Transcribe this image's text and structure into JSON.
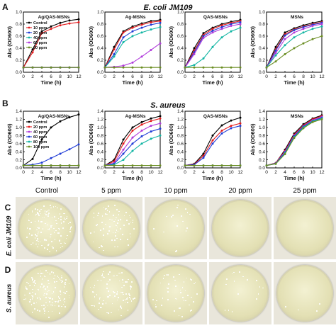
{
  "panel_letters": {
    "A": "A",
    "B": "B",
    "C": "C",
    "D": "D"
  },
  "organisms": {
    "A": "E. coli JM109",
    "B": "S. aureus"
  },
  "chart_data": [
    {
      "panel": "A",
      "type": "line",
      "title": "Ag/QAS-MSNs",
      "xlabel": "Time (h)",
      "ylabel": "Abs (OD600)",
      "x": [
        0,
        2,
        4,
        6,
        8,
        10,
        12
      ],
      "xlim": [
        0,
        12
      ],
      "ylim": [
        0,
        1.0
      ],
      "xticks": [
        0,
        2,
        4,
        6,
        8,
        10,
        12
      ],
      "yticks": [
        0.0,
        0.2,
        0.4,
        0.6,
        0.8,
        1.0
      ],
      "legend": "left",
      "series": [
        {
          "name": "Control",
          "color": "#000000",
          "values": [
            0.08,
            0.38,
            0.68,
            0.76,
            0.82,
            0.86,
            0.88
          ]
        },
        {
          "name": "10 ppm",
          "color": "#e41a1c",
          "values": [
            0.08,
            0.33,
            0.65,
            0.72,
            0.78,
            0.81,
            0.83
          ]
        },
        {
          "name": "20 ppm",
          "color": "#1f3bd6",
          "values": [
            0.08,
            0.08,
            0.08,
            0.08,
            0.08,
            0.08,
            0.08
          ]
        },
        {
          "name": "40 ppm",
          "color": "#11b5a3",
          "values": [
            0.08,
            0.08,
            0.08,
            0.08,
            0.08,
            0.08,
            0.08
          ]
        },
        {
          "name": "60 ppm",
          "color": "#b03adb",
          "values": [
            0.08,
            0.08,
            0.08,
            0.08,
            0.08,
            0.08,
            0.08
          ]
        },
        {
          "name": "80 ppm",
          "color": "#6b8e23",
          "values": [
            0.08,
            0.08,
            0.08,
            0.08,
            0.08,
            0.08,
            0.08
          ]
        }
      ]
    },
    {
      "panel": "A",
      "type": "line",
      "title": "Ag-MSNs",
      "xlabel": "Time (h)",
      "ylabel": "Abs (OD600)",
      "x": [
        0,
        2,
        4,
        6,
        8,
        10,
        12
      ],
      "xlim": [
        0,
        12
      ],
      "ylim": [
        0,
        1.0
      ],
      "xticks": [
        0,
        2,
        4,
        6,
        8,
        10,
        12
      ],
      "yticks": [
        0.0,
        0.2,
        0.4,
        0.6,
        0.8,
        1.0
      ],
      "series": [
        {
          "name": "Control",
          "color": "#000000",
          "values": [
            0.08,
            0.42,
            0.68,
            0.76,
            0.81,
            0.85,
            0.87
          ]
        },
        {
          "name": "10 ppm",
          "color": "#e41a1c",
          "values": [
            0.08,
            0.38,
            0.66,
            0.74,
            0.79,
            0.83,
            0.85
          ]
        },
        {
          "name": "20 ppm",
          "color": "#1f3bd6",
          "values": [
            0.08,
            0.3,
            0.58,
            0.68,
            0.74,
            0.79,
            0.82
          ]
        },
        {
          "name": "40 ppm",
          "color": "#11b5a3",
          "values": [
            0.08,
            0.26,
            0.5,
            0.6,
            0.66,
            0.71,
            0.75
          ]
        },
        {
          "name": "60 ppm",
          "color": "#b03adb",
          "values": [
            0.08,
            0.09,
            0.11,
            0.16,
            0.26,
            0.37,
            0.48
          ]
        },
        {
          "name": "80 ppm",
          "color": "#6b8e23",
          "values": [
            0.08,
            0.08,
            0.08,
            0.08,
            0.08,
            0.08,
            0.08
          ]
        }
      ]
    },
    {
      "panel": "A",
      "type": "line",
      "title": "QAS-MSNs",
      "xlabel": "Time (h)",
      "ylabel": "Abs (OD600)",
      "x": [
        0,
        2,
        4,
        6,
        8,
        10,
        12
      ],
      "xlim": [
        0,
        12
      ],
      "ylim": [
        0,
        1.0
      ],
      "xticks": [
        0,
        2,
        4,
        6,
        8,
        10,
        12
      ],
      "yticks": [
        0.0,
        0.2,
        0.4,
        0.6,
        0.8,
        1.0
      ],
      "series": [
        {
          "name": "Control",
          "color": "#000000",
          "values": [
            0.08,
            0.4,
            0.65,
            0.74,
            0.8,
            0.84,
            0.87
          ]
        },
        {
          "name": "10 ppm",
          "color": "#e41a1c",
          "values": [
            0.08,
            0.36,
            0.62,
            0.72,
            0.78,
            0.82,
            0.85
          ]
        },
        {
          "name": "20 ppm",
          "color": "#1f3bd6",
          "values": [
            0.08,
            0.33,
            0.6,
            0.69,
            0.75,
            0.8,
            0.83
          ]
        },
        {
          "name": "40 ppm",
          "color": "#b03adb",
          "values": [
            0.08,
            0.3,
            0.57,
            0.66,
            0.72,
            0.77,
            0.8
          ]
        },
        {
          "name": "60 ppm",
          "color": "#11b5a3",
          "values": [
            0.08,
            0.12,
            0.23,
            0.42,
            0.58,
            0.68,
            0.74
          ]
        },
        {
          "name": "80 ppm",
          "color": "#6b8e23",
          "values": [
            0.08,
            0.08,
            0.08,
            0.08,
            0.08,
            0.08,
            0.08
          ]
        }
      ]
    },
    {
      "panel": "A",
      "type": "line",
      "title": "MSNs",
      "xlabel": "Time (h)",
      "ylabel": "Abs (OD600)",
      "x": [
        0,
        2,
        4,
        6,
        8,
        10,
        12
      ],
      "xlim": [
        0,
        12
      ],
      "ylim": [
        0,
        1.0
      ],
      "xticks": [
        0,
        2,
        4,
        6,
        8,
        10,
        12
      ],
      "yticks": [
        0.0,
        0.2,
        0.4,
        0.6,
        0.8,
        1.0
      ],
      "series": [
        {
          "name": "Control",
          "color": "#000000",
          "values": [
            0.08,
            0.42,
            0.66,
            0.73,
            0.78,
            0.82,
            0.85
          ]
        },
        {
          "name": "10 ppm",
          "color": "#e41a1c",
          "values": [
            0.08,
            0.38,
            0.63,
            0.71,
            0.76,
            0.8,
            0.83
          ]
        },
        {
          "name": "20 ppm",
          "color": "#1f3bd6",
          "values": [
            0.08,
            0.36,
            0.61,
            0.7,
            0.75,
            0.79,
            0.82
          ]
        },
        {
          "name": "40 ppm",
          "color": "#b03adb",
          "values": [
            0.08,
            0.32,
            0.55,
            0.66,
            0.72,
            0.77,
            0.8
          ]
        },
        {
          "name": "60 ppm",
          "color": "#11b5a3",
          "values": [
            0.08,
            0.28,
            0.45,
            0.58,
            0.66,
            0.72,
            0.76
          ]
        },
        {
          "name": "80 ppm",
          "color": "#6b8e23",
          "values": [
            0.08,
            0.18,
            0.3,
            0.4,
            0.48,
            0.55,
            0.6
          ]
        }
      ]
    },
    {
      "panel": "B",
      "type": "line",
      "title": "Ag/QAS-MSNs",
      "xlabel": "Time (h)",
      "ylabel": "Abs (OD600)",
      "x": [
        0,
        2,
        4,
        6,
        8,
        10,
        12
      ],
      "xlim": [
        0,
        12
      ],
      "ylim": [
        0,
        1.4
      ],
      "xticks": [
        0,
        2,
        4,
        6,
        8,
        10,
        12
      ],
      "yticks": [
        0.0,
        0.2,
        0.4,
        0.6,
        0.8,
        1.0,
        1.2,
        1.4
      ],
      "legend": "left",
      "series": [
        {
          "name": "Control",
          "color": "#000000",
          "values": [
            0.06,
            0.22,
            0.7,
            1.0,
            1.15,
            1.25,
            1.32
          ]
        },
        {
          "name": "20 ppm",
          "color": "#e41a1c",
          "values": [
            0.06,
            0.06,
            0.06,
            0.06,
            0.06,
            0.06,
            0.06
          ]
        },
        {
          "name": "40 ppm",
          "color": "#b03adb",
          "values": [
            0.06,
            0.06,
            0.06,
            0.06,
            0.06,
            0.06,
            0.06
          ]
        },
        {
          "name": "60 ppm",
          "color": "#1f3bd6",
          "values": [
            0.06,
            0.08,
            0.13,
            0.24,
            0.35,
            0.46,
            0.58
          ]
        },
        {
          "name": "80 ppm",
          "color": "#11b5a3",
          "values": [
            0.06,
            0.06,
            0.06,
            0.06,
            0.06,
            0.06,
            0.06
          ]
        },
        {
          "name": "100 ppm",
          "color": "#6b8e23",
          "values": [
            0.06,
            0.06,
            0.06,
            0.06,
            0.06,
            0.06,
            0.06
          ]
        }
      ]
    },
    {
      "panel": "B",
      "type": "line",
      "title": "Ag-MSNs",
      "xlabel": "Time (h)",
      "ylabel": "Abs (OD600)",
      "x": [
        0,
        2,
        4,
        6,
        8,
        10,
        12
      ],
      "xlim": [
        0,
        12
      ],
      "ylim": [
        0,
        1.4
      ],
      "xticks": [
        0,
        2,
        4,
        6,
        8,
        10,
        12
      ],
      "yticks": [
        0.0,
        0.2,
        0.4,
        0.6,
        0.8,
        1.0,
        1.2,
        1.4
      ],
      "series": [
        {
          "name": "Control",
          "color": "#000000",
          "values": [
            0.06,
            0.2,
            0.7,
            1.0,
            1.13,
            1.22,
            1.28
          ]
        },
        {
          "name": "20 ppm",
          "color": "#e41a1c",
          "values": [
            0.06,
            0.16,
            0.6,
            0.92,
            1.07,
            1.16,
            1.22
          ]
        },
        {
          "name": "40 ppm",
          "color": "#b03adb",
          "values": [
            0.06,
            0.12,
            0.45,
            0.75,
            0.92,
            1.04,
            1.1
          ]
        },
        {
          "name": "60 ppm",
          "color": "#1f3bd6",
          "values": [
            0.06,
            0.1,
            0.35,
            0.6,
            0.78,
            0.9,
            0.97
          ]
        },
        {
          "name": "80 ppm",
          "color": "#11b5a3",
          "values": [
            0.06,
            0.08,
            0.2,
            0.42,
            0.6,
            0.72,
            0.8
          ]
        },
        {
          "name": "100 ppm",
          "color": "#6b8e23",
          "values": [
            0.06,
            0.06,
            0.06,
            0.06,
            0.06,
            0.06,
            0.06
          ]
        }
      ]
    },
    {
      "panel": "B",
      "type": "line",
      "title": "QAS-MSNs",
      "xlabel": "Time (h)",
      "ylabel": "Abs (OD600)",
      "x": [
        0,
        2,
        4,
        6,
        8,
        10,
        12
      ],
      "xlim": [
        0,
        12
      ],
      "ylim": [
        0,
        1.4
      ],
      "xticks": [
        0,
        2,
        4,
        6,
        8,
        10,
        12
      ],
      "yticks": [
        0.0,
        0.2,
        0.4,
        0.6,
        0.8,
        1.0,
        1.2,
        1.4
      ],
      "series": [
        {
          "name": "Control",
          "color": "#000000",
          "values": [
            0.06,
            0.1,
            0.35,
            0.8,
            1.05,
            1.17,
            1.24
          ]
        },
        {
          "name": "20 ppm",
          "color": "#e41a1c",
          "values": [
            0.06,
            0.09,
            0.3,
            0.68,
            0.92,
            1.04,
            1.1
          ]
        },
        {
          "name": "40 ppm",
          "color": "#1f3bd6",
          "values": [
            0.06,
            0.08,
            0.25,
            0.6,
            0.85,
            0.98,
            1.04
          ]
        },
        {
          "name": "60 ppm",
          "color": "#b03adb",
          "values": [
            0.06,
            0.06,
            0.06,
            0.06,
            0.06,
            0.06,
            0.06
          ]
        },
        {
          "name": "80 ppm",
          "color": "#11b5a3",
          "values": [
            0.06,
            0.06,
            0.06,
            0.06,
            0.06,
            0.06,
            0.06
          ]
        },
        {
          "name": "100 ppm",
          "color": "#6b8e23",
          "values": [
            0.06,
            0.06,
            0.06,
            0.06,
            0.06,
            0.06,
            0.06
          ]
        }
      ]
    },
    {
      "panel": "B",
      "type": "line",
      "title": "MSNs",
      "xlabel": "Time (h)",
      "ylabel": "Abs (OD600)",
      "x": [
        0,
        2,
        4,
        6,
        8,
        10,
        12
      ],
      "xlim": [
        0,
        12
      ],
      "ylim": [
        0,
        1.4
      ],
      "xticks": [
        0,
        2,
        4,
        6,
        8,
        10,
        12
      ],
      "yticks": [
        0.0,
        0.2,
        0.4,
        0.6,
        0.8,
        1.0,
        1.2,
        1.4
      ],
      "series": [
        {
          "name": "Control",
          "color": "#000000",
          "values": [
            0.06,
            0.12,
            0.45,
            0.85,
            1.08,
            1.22,
            1.3
          ]
        },
        {
          "name": "20 ppm",
          "color": "#e41a1c",
          "values": [
            0.06,
            0.12,
            0.42,
            0.82,
            1.05,
            1.2,
            1.28
          ]
        },
        {
          "name": "40 ppm",
          "color": "#b03adb",
          "values": [
            0.06,
            0.11,
            0.4,
            0.8,
            1.03,
            1.18,
            1.26
          ]
        },
        {
          "name": "60 ppm",
          "color": "#1f3bd6",
          "values": [
            0.06,
            0.11,
            0.38,
            0.78,
            1.02,
            1.16,
            1.24
          ]
        },
        {
          "name": "80 ppm",
          "color": "#11b5a3",
          "values": [
            0.06,
            0.1,
            0.36,
            0.76,
            1.0,
            1.15,
            1.22
          ]
        },
        {
          "name": "100 ppm",
          "color": "#6b8e23",
          "values": [
            0.06,
            0.1,
            0.34,
            0.74,
            0.98,
            1.13,
            1.2
          ]
        }
      ]
    }
  ],
  "plates": {
    "headers": [
      "Control",
      "5 ppm",
      "10 ppm",
      "20 ppm",
      "25 ppm"
    ],
    "rows": [
      {
        "letter": "C",
        "label": "E. coli JM109",
        "colony_levels": [
          1.0,
          0.55,
          0.12,
          0.0,
          0.0
        ]
      },
      {
        "letter": "D",
        "label": "S. aureus",
        "colony_levels": [
          1.0,
          0.7,
          0.35,
          0.12,
          0.03
        ]
      }
    ]
  },
  "colors": {
    "plate_bg": "#e9e6db",
    "agar": "#e3e0b4",
    "agar_edge": "#c9c49a",
    "colony": "#ffffff"
  }
}
